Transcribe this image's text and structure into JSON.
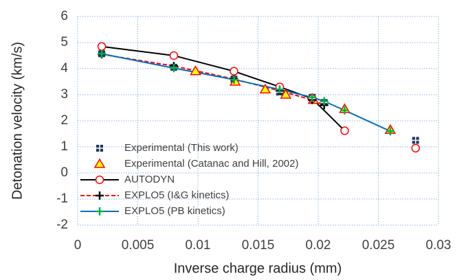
{
  "chart_data": {
    "type": "line",
    "x_label": "Inverse charge radius (mm)",
    "y_label": "Detonation velocity (km/s)",
    "xlim": [
      0,
      0.03
    ],
    "xticks": [
      0,
      0.005,
      0.01,
      0.015,
      0.02,
      0.025,
      0.03
    ],
    "ylim": [
      -2,
      6
    ],
    "yticks": [
      -2,
      -1,
      0,
      1,
      2,
      3,
      4,
      5,
      6
    ],
    "grid": true,
    "legend": "lower left",
    "series": [
      {
        "name": "Experimental (This work)",
        "color": "#1f3864",
        "line": "none",
        "marker": "square-plus",
        "x": [
          0.002,
          0.008,
          0.013,
          0.0168,
          0.0195,
          0.0205,
          0.0281
        ],
        "values": [
          4.57,
          4.05,
          3.6,
          3.1,
          2.9,
          2.7,
          1.25
        ]
      },
      {
        "name": "Experimental (Catanac and Hill, 2002)",
        "color": "#ff0000",
        "marker_fill": "#ffff00",
        "line": "none",
        "marker": "triangle",
        "x": [
          0.0098,
          0.0131,
          0.0156,
          0.0173,
          0.0196,
          0.0222,
          0.026
        ],
        "values": [
          3.9,
          3.5,
          3.2,
          3.0,
          2.8,
          2.45,
          1.65
        ]
      },
      {
        "name": "AUTODYN",
        "color": "#000000",
        "marker_color": "#ff0000",
        "line": "solid",
        "marker": "circle",
        "x": [
          0.002,
          0.008,
          0.013,
          0.0168,
          0.0195,
          0.0222,
          0.025,
          0.0281
        ],
        "values": [
          4.85,
          4.5,
          3.9,
          3.3,
          2.85,
          1.62,
          null,
          0.95
        ]
      },
      {
        "name": "EXPLO5 (I&G kinetics)",
        "color": "#ff0000",
        "marker_color": "#000000",
        "line": "dashed",
        "marker": "plus",
        "x": [
          0.002,
          0.008,
          0.013,
          0.0168,
          0.0195,
          0.0205
        ],
        "values": [
          4.55,
          4.1,
          3.6,
          3.15,
          2.8,
          2.6
        ]
      },
      {
        "name": "EXPLO5 (PB kinetics)",
        "color": "#0070c0",
        "marker_color": "#00b050",
        "line": "solid",
        "marker": "plus",
        "x": [
          0.002,
          0.008,
          0.013,
          0.0168,
          0.0195,
          0.0205,
          0.0222,
          0.026
        ],
        "values": [
          4.57,
          4.02,
          3.58,
          3.2,
          2.9,
          2.75,
          2.4,
          1.6
        ]
      }
    ]
  }
}
